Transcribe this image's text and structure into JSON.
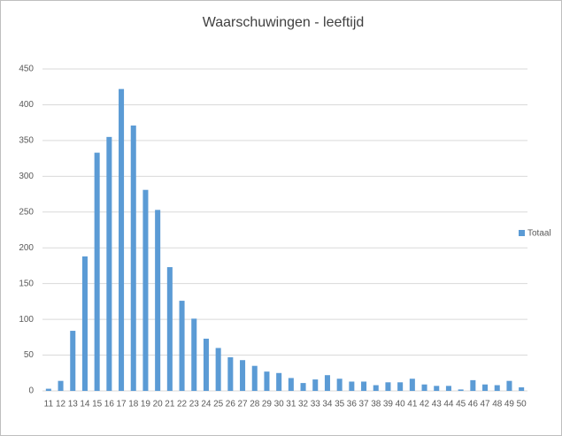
{
  "chart_data": {
    "type": "bar",
    "title": "Waarschuwingen - leeftijd",
    "categories": [
      "11",
      "12",
      "13",
      "14",
      "15",
      "16",
      "17",
      "18",
      "19",
      "20",
      "21",
      "22",
      "23",
      "24",
      "25",
      "26",
      "27",
      "28",
      "29",
      "30",
      "31",
      "32",
      "33",
      "34",
      "35",
      "36",
      "37",
      "38",
      "39",
      "40",
      "41",
      "42",
      "43",
      "44",
      "45",
      "46",
      "47",
      "48",
      "49",
      "50"
    ],
    "series": [
      {
        "name": "Totaal",
        "color": "#5b9bd5",
        "values": [
          3,
          14,
          84,
          188,
          333,
          355,
          422,
          371,
          281,
          253,
          173,
          126,
          101,
          73,
          60,
          47,
          43,
          35,
          27,
          25,
          18,
          11,
          16,
          22,
          17,
          13,
          13,
          8,
          12,
          12,
          17,
          9,
          7,
          7,
          2,
          15,
          9,
          8,
          14,
          5
        ]
      }
    ],
    "ylim": [
      0,
      450
    ],
    "yticks": [
      0,
      50,
      100,
      150,
      200,
      250,
      300,
      350,
      400,
      450
    ],
    "grid": true,
    "legend": "right"
  }
}
